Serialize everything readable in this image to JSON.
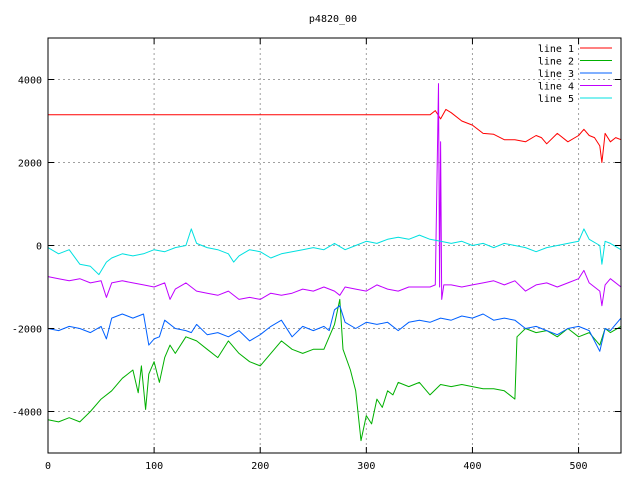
{
  "chart_data": {
    "type": "line",
    "title": "p4820_00",
    "xlabel": "",
    "ylabel": "",
    "xlim": [
      0,
      540
    ],
    "ylim": [
      -5000,
      5000
    ],
    "x_ticks": [
      0,
      100,
      200,
      300,
      400,
      500
    ],
    "y_ticks": [
      -4000,
      -2000,
      0,
      2000,
      4000
    ],
    "grid": true,
    "legend_position": "top-right",
    "series": [
      {
        "name": "line 1",
        "color": "#ff0000",
        "points": [
          [
            0,
            3150
          ],
          [
            100,
            3150
          ],
          [
            200,
            3150
          ],
          [
            300,
            3150
          ],
          [
            360,
            3150
          ],
          [
            365,
            3250
          ],
          [
            370,
            3050
          ],
          [
            375,
            3280
          ],
          [
            380,
            3200
          ],
          [
            390,
            3000
          ],
          [
            400,
            2900
          ],
          [
            410,
            2700
          ],
          [
            420,
            2680
          ],
          [
            430,
            2550
          ],
          [
            440,
            2550
          ],
          [
            450,
            2500
          ],
          [
            460,
            2650
          ],
          [
            465,
            2600
          ],
          [
            470,
            2450
          ],
          [
            480,
            2700
          ],
          [
            490,
            2500
          ],
          [
            500,
            2650
          ],
          [
            505,
            2800
          ],
          [
            510,
            2650
          ],
          [
            515,
            2600
          ],
          [
            520,
            2400
          ],
          [
            522,
            2000
          ],
          [
            525,
            2700
          ],
          [
            530,
            2500
          ],
          [
            535,
            2600
          ],
          [
            540,
            2550
          ]
        ]
      },
      {
        "name": "line 2",
        "color": "#00b000",
        "points": [
          [
            0,
            -4200
          ],
          [
            10,
            -4250
          ],
          [
            20,
            -4150
          ],
          [
            30,
            -4250
          ],
          [
            40,
            -4000
          ],
          [
            50,
            -3700
          ],
          [
            60,
            -3500
          ],
          [
            70,
            -3200
          ],
          [
            80,
            -3000
          ],
          [
            85,
            -3550
          ],
          [
            88,
            -2900
          ],
          [
            92,
            -3950
          ],
          [
            95,
            -3100
          ],
          [
            100,
            -2800
          ],
          [
            105,
            -3300
          ],
          [
            110,
            -2700
          ],
          [
            115,
            -2400
          ],
          [
            120,
            -2600
          ],
          [
            130,
            -2200
          ],
          [
            140,
            -2300
          ],
          [
            150,
            -2500
          ],
          [
            160,
            -2700
          ],
          [
            170,
            -2300
          ],
          [
            180,
            -2600
          ],
          [
            190,
            -2800
          ],
          [
            200,
            -2900
          ],
          [
            210,
            -2600
          ],
          [
            220,
            -2300
          ],
          [
            230,
            -2500
          ],
          [
            240,
            -2600
          ],
          [
            250,
            -2500
          ],
          [
            260,
            -2500
          ],
          [
            270,
            -1900
          ],
          [
            275,
            -1300
          ],
          [
            278,
            -2500
          ],
          [
            285,
            -3000
          ],
          [
            290,
            -3500
          ],
          [
            295,
            -4700
          ],
          [
            300,
            -4100
          ],
          [
            305,
            -4300
          ],
          [
            310,
            -3700
          ],
          [
            315,
            -3900
          ],
          [
            320,
            -3500
          ],
          [
            325,
            -3600
          ],
          [
            330,
            -3300
          ],
          [
            340,
            -3400
          ],
          [
            350,
            -3300
          ],
          [
            360,
            -3600
          ],
          [
            370,
            -3350
          ],
          [
            380,
            -3400
          ],
          [
            390,
            -3350
          ],
          [
            400,
            -3400
          ],
          [
            410,
            -3450
          ],
          [
            420,
            -3450
          ],
          [
            430,
            -3500
          ],
          [
            440,
            -3700
          ],
          [
            442,
            -2200
          ],
          [
            450,
            -2000
          ],
          [
            460,
            -2100
          ],
          [
            470,
            -2050
          ],
          [
            480,
            -2200
          ],
          [
            490,
            -2000
          ],
          [
            500,
            -2200
          ],
          [
            510,
            -2100
          ],
          [
            520,
            -2400
          ],
          [
            525,
            -2000
          ],
          [
            530,
            -2100
          ],
          [
            540,
            -1950
          ]
        ]
      },
      {
        "name": "line 3",
        "color": "#0060ff",
        "points": [
          [
            0,
            -2000
          ],
          [
            10,
            -2050
          ],
          [
            20,
            -1950
          ],
          [
            30,
            -2000
          ],
          [
            40,
            -2100
          ],
          [
            50,
            -1950
          ],
          [
            55,
            -2250
          ],
          [
            60,
            -1750
          ],
          [
            70,
            -1650
          ],
          [
            80,
            -1750
          ],
          [
            90,
            -1650
          ],
          [
            95,
            -2400
          ],
          [
            100,
            -2250
          ],
          [
            105,
            -2200
          ],
          [
            110,
            -1800
          ],
          [
            120,
            -2000
          ],
          [
            130,
            -2050
          ],
          [
            135,
            -2100
          ],
          [
            140,
            -1900
          ],
          [
            150,
            -2150
          ],
          [
            160,
            -2100
          ],
          [
            170,
            -2200
          ],
          [
            180,
            -2050
          ],
          [
            190,
            -2300
          ],
          [
            200,
            -2150
          ],
          [
            210,
            -1950
          ],
          [
            220,
            -1800
          ],
          [
            230,
            -2200
          ],
          [
            240,
            -1950
          ],
          [
            250,
            -2050
          ],
          [
            260,
            -1950
          ],
          [
            265,
            -2050
          ],
          [
            270,
            -1550
          ],
          [
            275,
            -1450
          ],
          [
            280,
            -1850
          ],
          [
            290,
            -2000
          ],
          [
            300,
            -1850
          ],
          [
            310,
            -1900
          ],
          [
            320,
            -1850
          ],
          [
            330,
            -2050
          ],
          [
            340,
            -1850
          ],
          [
            350,
            -1800
          ],
          [
            360,
            -1850
          ],
          [
            370,
            -1750
          ],
          [
            380,
            -1800
          ],
          [
            390,
            -1700
          ],
          [
            400,
            -1750
          ],
          [
            410,
            -1650
          ],
          [
            420,
            -1800
          ],
          [
            430,
            -1750
          ],
          [
            440,
            -1800
          ],
          [
            450,
            -2000
          ],
          [
            460,
            -1950
          ],
          [
            470,
            -2050
          ],
          [
            480,
            -2150
          ],
          [
            490,
            -2000
          ],
          [
            500,
            -1950
          ],
          [
            510,
            -2050
          ],
          [
            520,
            -2550
          ],
          [
            525,
            -2000
          ],
          [
            530,
            -2050
          ],
          [
            540,
            -1750
          ]
        ]
      },
      {
        "name": "line 4",
        "color": "#c000ff",
        "points": [
          [
            0,
            -750
          ],
          [
            10,
            -800
          ],
          [
            20,
            -850
          ],
          [
            30,
            -800
          ],
          [
            40,
            -900
          ],
          [
            50,
            -850
          ],
          [
            55,
            -1250
          ],
          [
            60,
            -900
          ],
          [
            70,
            -850
          ],
          [
            80,
            -900
          ],
          [
            90,
            -950
          ],
          [
            100,
            -1000
          ],
          [
            110,
            -900
          ],
          [
            115,
            -1300
          ],
          [
            120,
            -1050
          ],
          [
            130,
            -900
          ],
          [
            140,
            -1100
          ],
          [
            150,
            -1150
          ],
          [
            160,
            -1200
          ],
          [
            170,
            -1100
          ],
          [
            180,
            -1300
          ],
          [
            190,
            -1250
          ],
          [
            200,
            -1300
          ],
          [
            210,
            -1150
          ],
          [
            220,
            -1200
          ],
          [
            230,
            -1150
          ],
          [
            240,
            -1050
          ],
          [
            250,
            -1100
          ],
          [
            260,
            -1000
          ],
          [
            270,
            -1100
          ],
          [
            275,
            -1200
          ],
          [
            280,
            -1000
          ],
          [
            290,
            -1050
          ],
          [
            300,
            -1100
          ],
          [
            310,
            -950
          ],
          [
            320,
            -1050
          ],
          [
            330,
            -1100
          ],
          [
            340,
            -1000
          ],
          [
            350,
            -1000
          ],
          [
            360,
            -1000
          ],
          [
            365,
            -950
          ],
          [
            368,
            3900
          ],
          [
            369,
            -1000
          ],
          [
            370,
            2500
          ],
          [
            371,
            -1300
          ],
          [
            373,
            -950
          ],
          [
            380,
            -950
          ],
          [
            390,
            -1000
          ],
          [
            400,
            -950
          ],
          [
            410,
            -900
          ],
          [
            420,
            -850
          ],
          [
            430,
            -950
          ],
          [
            440,
            -850
          ],
          [
            450,
            -1100
          ],
          [
            460,
            -950
          ],
          [
            470,
            -900
          ],
          [
            480,
            -1000
          ],
          [
            490,
            -900
          ],
          [
            500,
            -800
          ],
          [
            505,
            -600
          ],
          [
            510,
            -900
          ],
          [
            520,
            -1100
          ],
          [
            522,
            -1450
          ],
          [
            525,
            -950
          ],
          [
            530,
            -800
          ],
          [
            540,
            -1000
          ]
        ]
      },
      {
        "name": "line 5",
        "color": "#00e0e0",
        "points": [
          [
            0,
            -50
          ],
          [
            10,
            -200
          ],
          [
            20,
            -100
          ],
          [
            30,
            -450
          ],
          [
            40,
            -500
          ],
          [
            48,
            -700
          ],
          [
            55,
            -400
          ],
          [
            60,
            -300
          ],
          [
            70,
            -200
          ],
          [
            80,
            -250
          ],
          [
            90,
            -200
          ],
          [
            100,
            -100
          ],
          [
            110,
            -150
          ],
          [
            120,
            -50
          ],
          [
            130,
            0
          ],
          [
            135,
            400
          ],
          [
            140,
            50
          ],
          [
            150,
            -50
          ],
          [
            160,
            -100
          ],
          [
            170,
            -200
          ],
          [
            175,
            -400
          ],
          [
            180,
            -250
          ],
          [
            190,
            -100
          ],
          [
            200,
            -150
          ],
          [
            210,
            -300
          ],
          [
            220,
            -200
          ],
          [
            230,
            -150
          ],
          [
            240,
            -100
          ],
          [
            250,
            -50
          ],
          [
            260,
            -100
          ],
          [
            270,
            50
          ],
          [
            280,
            -100
          ],
          [
            290,
            0
          ],
          [
            300,
            100
          ],
          [
            310,
            50
          ],
          [
            320,
            150
          ],
          [
            330,
            200
          ],
          [
            340,
            150
          ],
          [
            350,
            250
          ],
          [
            360,
            150
          ],
          [
            370,
            100
          ],
          [
            380,
            50
          ],
          [
            390,
            100
          ],
          [
            400,
            0
          ],
          [
            410,
            50
          ],
          [
            420,
            -50
          ],
          [
            430,
            50
          ],
          [
            440,
            0
          ],
          [
            450,
            -50
          ],
          [
            460,
            -150
          ],
          [
            470,
            -50
          ],
          [
            480,
            0
          ],
          [
            490,
            50
          ],
          [
            500,
            100
          ],
          [
            505,
            400
          ],
          [
            510,
            150
          ],
          [
            520,
            0
          ],
          [
            522,
            -450
          ],
          [
            525,
            100
          ],
          [
            530,
            50
          ],
          [
            540,
            -100
          ]
        ]
      }
    ]
  }
}
